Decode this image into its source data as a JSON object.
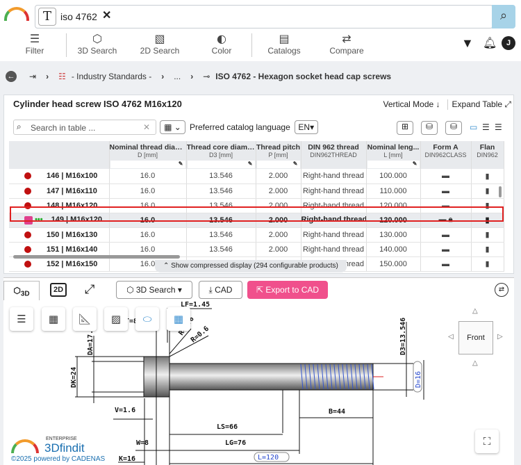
{
  "search": {
    "value": "iso 4762",
    "type_icon": "T"
  },
  "toolbar": [
    {
      "label": "Filter",
      "icon": "sliders-icon"
    },
    {
      "label": "3D Search",
      "icon": "cube-icon"
    },
    {
      "label": "2D Search",
      "icon": "image-icon"
    },
    {
      "label": "Color",
      "icon": "palette-icon"
    },
    {
      "label": "Catalogs",
      "icon": "catalog-icon"
    },
    {
      "label": "Compare",
      "icon": "compare-icon"
    }
  ],
  "user_initial": "J",
  "breadcrumb": [
    "- Industry Standards -",
    "...",
    "ISO 4762 - Hexagon socket head cap screws"
  ],
  "panel": {
    "title": "Cylinder head screw ISO 4762 M16x120",
    "vertical_mode": "Vertical Mode",
    "expand_table": "Expand Table",
    "search_placeholder": "Search in table ...",
    "lang_label": "Preferred catalog language",
    "lang": "EN"
  },
  "columns": [
    {
      "name": "Nominal thread diam...",
      "unit": "D [mm]"
    },
    {
      "name": "Thread core diame...",
      "unit": "D3 [mm]"
    },
    {
      "name": "Thread pitch",
      "unit": "P [mm]"
    },
    {
      "name": "DIN 962 thread",
      "unit": "DIN962THREAD"
    },
    {
      "name": "Nominal leng...",
      "unit": "L [mm]"
    },
    {
      "name": "Form A",
      "unit": "DIN962CLASS"
    },
    {
      "name": "Flan",
      "unit": "DIN962"
    }
  ],
  "rows": [
    {
      "id": "146 | M16x100",
      "d": "16.0",
      "d3": "13.546",
      "p": "2.000",
      "thread": "Right-hand thread",
      "l": "100.000"
    },
    {
      "id": "147 | M16x110",
      "d": "16.0",
      "d3": "13.546",
      "p": "2.000",
      "thread": "Right-hand thread",
      "l": "110.000"
    },
    {
      "id": "148 | M16x120",
      "d": "16.0",
      "d3": "13.546",
      "p": "2.000",
      "thread": "Right-hand thread",
      "l": "120.000"
    },
    {
      "id": "149 | M16x120",
      "d": "16.0",
      "d3": "13.546",
      "p": "2.000",
      "thread": "Right-hand thread",
      "l": "120.000",
      "selected": true
    },
    {
      "id": "150 | M16x130",
      "d": "16.0",
      "d3": "13.546",
      "p": "2.000",
      "thread": "Right-hand thread",
      "l": "130.000"
    },
    {
      "id": "151 | M16x140",
      "d": "16.0",
      "d3": "13.546",
      "p": "2.000",
      "thread": "Right-hand thread",
      "l": "140.000"
    },
    {
      "id": "152 | M16x150",
      "d": "16.0",
      "d3": "13.546",
      "p": "2.000",
      "thread": "Right-hand thread",
      "l": "150.000"
    }
  ],
  "compressed": "Show compressed display (294 configurable products)",
  "viewer": {
    "tab_3d": "3D",
    "tab_2d": "2D",
    "search3d": "3D Search",
    "cad": "CAD",
    "export": "Export to CAD",
    "export_color": "#f0508c",
    "cube_face": "Front"
  },
  "dims": {
    "lf": "LF=1.45",
    "r1": "R=0.6",
    "r2": "R=0.6",
    "t": "T=8",
    "da": "DA=17.7",
    "dk": "DK=24",
    "d3": "D3=13.546",
    "d": "D=16",
    "v": "V=1.6",
    "b": "B=44",
    "ls": "LS=66",
    "w": "W=8",
    "lg": "LG=76",
    "k": "K=16",
    "l": "L=120"
  },
  "brand": {
    "enterprise": "ENTERPRISE",
    "name": "3Dfindit",
    "powered": "©2025 powered by CADENAS"
  }
}
